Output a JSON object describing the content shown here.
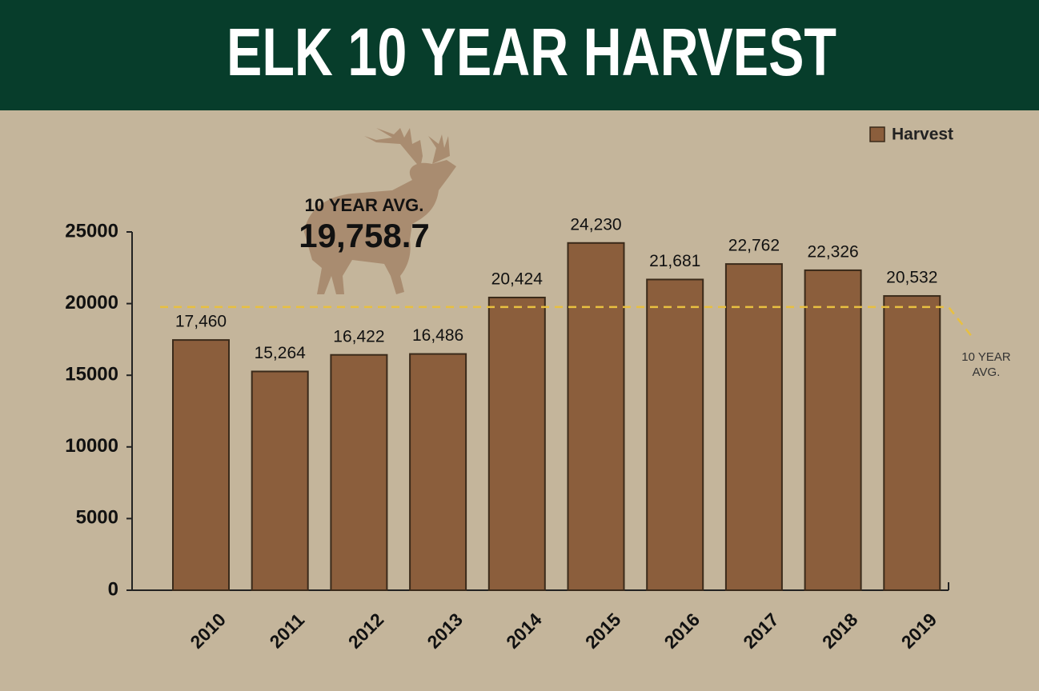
{
  "chart_data": {
    "type": "bar",
    "title": "ELK 10 YEAR HARVEST",
    "categories": [
      "2010",
      "2011",
      "2012",
      "2013",
      "2014",
      "2015",
      "2016",
      "2017",
      "2018",
      "2019"
    ],
    "series": [
      {
        "name": "Harvest",
        "color": "#8b5e3c",
        "values": [
          17460,
          15264,
          16422,
          16486,
          20424,
          24230,
          21681,
          22762,
          22326,
          20532
        ],
        "value_labels": [
          "17,460",
          "15,264",
          "16,422",
          "16,486",
          "20,424",
          "24,230",
          "21,681",
          "22,762",
          "22,326",
          "20,532"
        ]
      }
    ],
    "average": {
      "value": 19758.7,
      "label": "19,758.7",
      "title": "10 YEAR AVG.",
      "line_label": [
        "10 YEAR",
        "AVG."
      ],
      "color": "#e8c040"
    },
    "ylim": [
      0,
      25000
    ],
    "yticks": [
      0,
      5000,
      10000,
      15000,
      20000,
      25000
    ],
    "legend": "top-right"
  }
}
